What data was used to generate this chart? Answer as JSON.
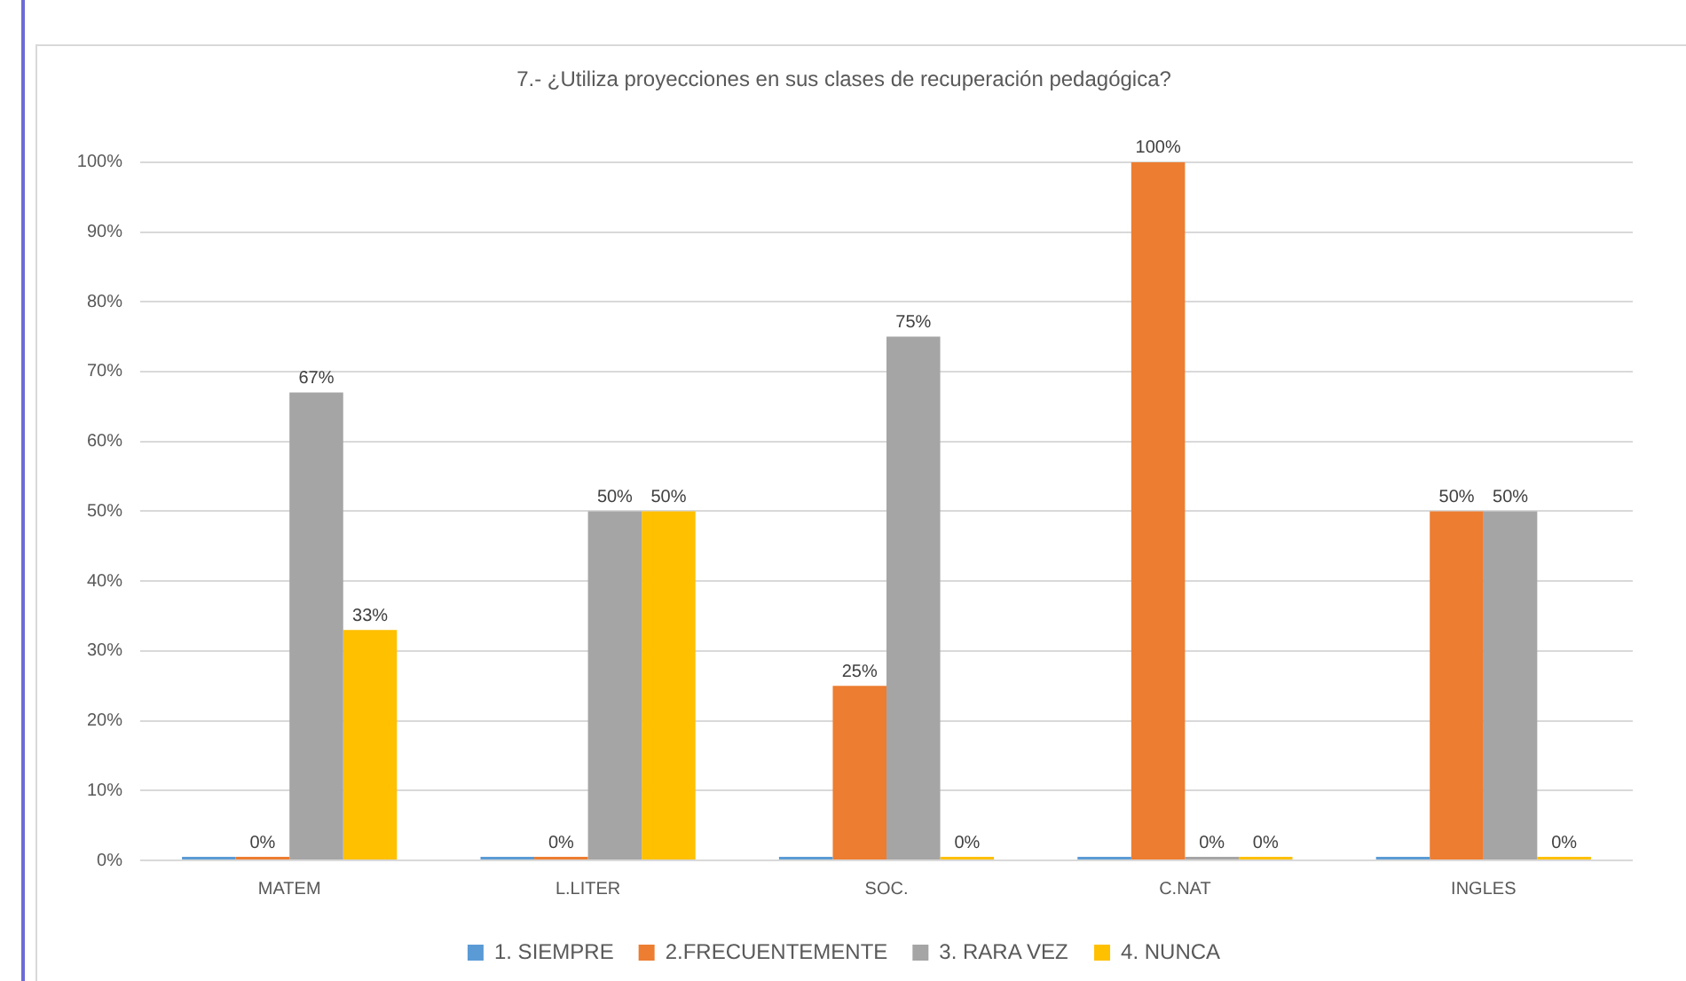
{
  "chart_data": {
    "type": "bar",
    "title": "7.- ¿Utiliza proyecciones en sus clases de recuperación pedagógica?",
    "categories": [
      "MATEM",
      "L.LITER",
      "SOC.",
      "C.NAT",
      "INGLES"
    ],
    "series": [
      {
        "name": "1. SIEMPRE",
        "color": "#5b9bd5",
        "values": [
          0,
          0,
          0,
          0,
          0
        ]
      },
      {
        "name": "2.FRECUENTEMENTE",
        "color": "#ed7d31",
        "values": [
          0,
          0,
          25,
          100,
          50
        ],
        "value_labels": [
          "0%",
          "0%",
          "25%",
          "100%",
          "50%"
        ]
      },
      {
        "name": "3. RARA VEZ",
        "color": "#a5a5a5",
        "values": [
          67,
          50,
          75,
          0,
          50
        ],
        "value_labels": [
          "67%",
          "50%",
          "75%",
          "0%",
          "50%"
        ]
      },
      {
        "name": "4. NUNCA",
        "color": "#ffc000",
        "values": [
          33,
          50,
          0,
          0,
          0
        ],
        "value_labels": [
          "33%",
          "50%",
          "0%",
          "0%",
          "0%"
        ]
      }
    ],
    "ylim": [
      0,
      100
    ],
    "yticks": [
      {
        "value": 0,
        "label": "0%"
      },
      {
        "value": 10,
        "label": "10%"
      },
      {
        "value": 20,
        "label": "20%"
      },
      {
        "value": 30,
        "label": "30%"
      },
      {
        "value": 40,
        "label": "40%"
      },
      {
        "value": 50,
        "label": "50%"
      },
      {
        "value": 60,
        "label": "60%"
      },
      {
        "value": 70,
        "label": "70%"
      },
      {
        "value": 80,
        "label": "80%"
      },
      {
        "value": 90,
        "label": "90%"
      },
      {
        "value": 100,
        "label": "100%"
      }
    ],
    "grid": "y",
    "legend": "bottom"
  }
}
